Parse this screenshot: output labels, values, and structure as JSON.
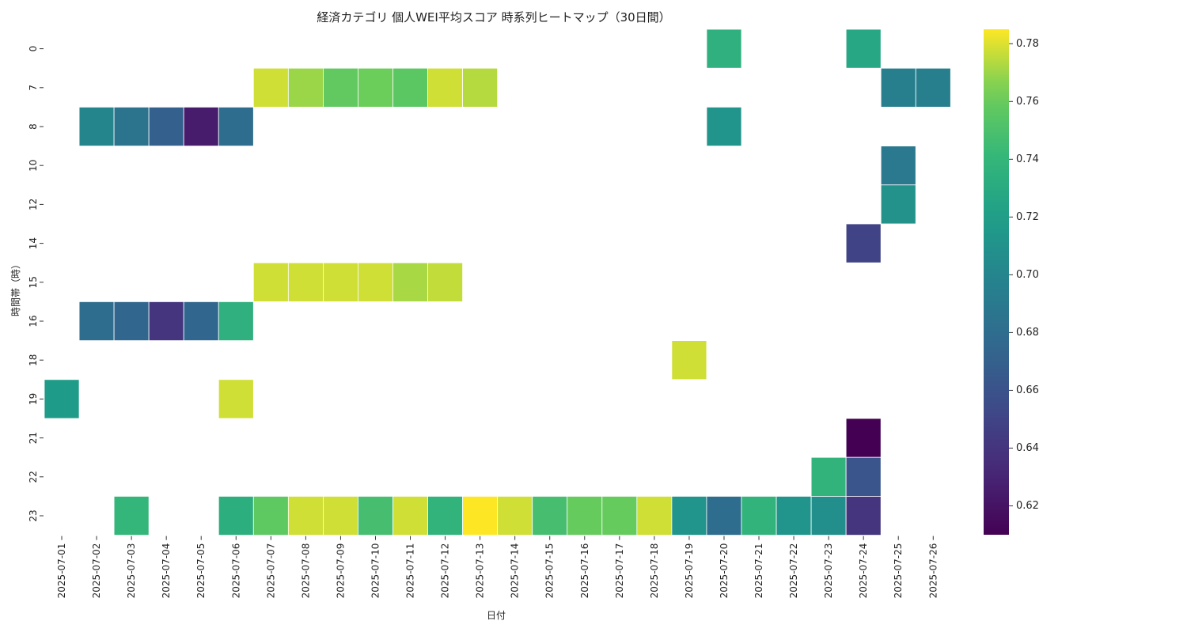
{
  "chart_data": {
    "type": "heatmap",
    "title": "経済カテゴリ 個人WEI平均スコア 時系列ヒートマップ（30日間）",
    "xlabel": "日付",
    "ylabel": "時間帯（時）",
    "x_categories": [
      "2025-07-01",
      "2025-07-02",
      "2025-07-03",
      "2025-07-04",
      "2025-07-05",
      "2025-07-06",
      "2025-07-07",
      "2025-07-08",
      "2025-07-09",
      "2025-07-10",
      "2025-07-11",
      "2025-07-12",
      "2025-07-13",
      "2025-07-14",
      "2025-07-15",
      "2025-07-16",
      "2025-07-17",
      "2025-07-18",
      "2025-07-19",
      "2025-07-20",
      "2025-07-21",
      "2025-07-22",
      "2025-07-23",
      "2025-07-24",
      "2025-07-25",
      "2025-07-26"
    ],
    "y_categories": [
      "0",
      "7",
      "8",
      "10",
      "12",
      "14",
      "15",
      "16",
      "18",
      "19",
      "21",
      "22",
      "23"
    ],
    "colormap": "viridis",
    "colorbar": {
      "vmin": 0.61,
      "vmax": 0.785,
      "ticks": [
        0.62,
        0.64,
        0.66,
        0.68,
        0.7,
        0.72,
        0.74,
        0.76,
        0.78
      ],
      "tick_labels": [
        "0.62",
        "0.64",
        "0.66",
        "0.68",
        "0.70",
        "0.72",
        "0.74",
        "0.76",
        "0.78"
      ]
    },
    "values": [
      [
        null,
        null,
        null,
        null,
        null,
        null,
        null,
        null,
        null,
        null,
        null,
        null,
        null,
        null,
        null,
        null,
        null,
        null,
        null,
        0.735,
        null,
        null,
        null,
        0.727,
        null,
        null
      ],
      [
        null,
        null,
        null,
        null,
        null,
        null,
        0.778,
        0.77,
        0.758,
        0.762,
        0.756,
        0.778,
        0.774,
        null,
        null,
        null,
        null,
        null,
        null,
        null,
        null,
        null,
        null,
        null,
        0.695,
        0.695
      ],
      [
        null,
        0.7,
        0.685,
        0.67,
        0.625,
        0.68,
        null,
        null,
        null,
        null,
        null,
        null,
        null,
        null,
        null,
        null,
        null,
        null,
        null,
        0.712,
        null,
        null,
        null,
        null,
        null,
        null
      ],
      [
        null,
        null,
        null,
        null,
        null,
        null,
        null,
        null,
        null,
        null,
        null,
        null,
        null,
        null,
        null,
        null,
        null,
        null,
        null,
        null,
        null,
        null,
        null,
        null,
        0.69,
        null
      ],
      [
        null,
        null,
        null,
        null,
        null,
        null,
        null,
        null,
        null,
        null,
        null,
        null,
        null,
        null,
        null,
        null,
        null,
        null,
        null,
        null,
        null,
        null,
        null,
        null,
        0.71,
        null
      ],
      [
        null,
        null,
        null,
        null,
        null,
        null,
        null,
        null,
        null,
        null,
        null,
        null,
        null,
        null,
        null,
        null,
        null,
        null,
        null,
        null,
        null,
        null,
        null,
        0.65,
        null,
        null
      ],
      [
        null,
        null,
        null,
        null,
        null,
        null,
        0.778,
        0.778,
        0.778,
        0.778,
        0.772,
        0.776,
        null,
        null,
        null,
        null,
        null,
        null,
        null,
        null,
        null,
        null,
        null,
        null,
        null,
        null
      ],
      [
        null,
        0.68,
        0.675,
        0.64,
        0.675,
        0.735,
        null,
        null,
        null,
        null,
        null,
        null,
        null,
        null,
        null,
        null,
        null,
        null,
        null,
        null,
        null,
        null,
        null,
        null,
        null,
        null
      ],
      [
        null,
        null,
        null,
        null,
        null,
        null,
        null,
        null,
        null,
        null,
        null,
        null,
        null,
        null,
        null,
        null,
        null,
        null,
        0.778,
        null,
        null,
        null,
        null,
        null,
        null,
        null
      ],
      [
        0.718,
        null,
        null,
        null,
        null,
        0.778,
        null,
        null,
        null,
        null,
        null,
        null,
        null,
        null,
        null,
        null,
        null,
        null,
        null,
        null,
        null,
        null,
        null,
        null,
        null,
        null
      ],
      [
        null,
        null,
        null,
        null,
        null,
        null,
        null,
        null,
        null,
        null,
        null,
        null,
        null,
        null,
        null,
        null,
        null,
        null,
        null,
        null,
        null,
        null,
        null,
        0.61,
        null,
        null
      ],
      [
        null,
        null,
        null,
        null,
        null,
        null,
        null,
        null,
        null,
        null,
        null,
        null,
        null,
        null,
        null,
        null,
        null,
        null,
        null,
        null,
        null,
        null,
        0.738,
        0.662,
        null,
        null
      ],
      [
        null,
        null,
        0.74,
        null,
        null,
        0.733,
        0.757,
        0.778,
        0.778,
        0.748,
        0.778,
        0.738,
        0.785,
        0.778,
        0.748,
        0.76,
        0.76,
        0.778,
        0.712,
        0.68,
        0.738,
        0.712,
        0.708,
        0.64,
        null,
        null
      ]
    ]
  }
}
